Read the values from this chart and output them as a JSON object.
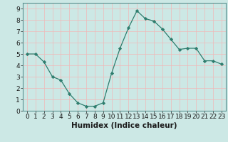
{
  "x": [
    0,
    1,
    2,
    3,
    4,
    5,
    6,
    7,
    8,
    9,
    10,
    11,
    12,
    13,
    14,
    15,
    16,
    17,
    18,
    19,
    20,
    21,
    22,
    23
  ],
  "y": [
    5.0,
    5.0,
    4.3,
    3.0,
    2.7,
    1.5,
    0.7,
    0.4,
    0.4,
    0.7,
    3.3,
    5.5,
    7.3,
    8.8,
    8.1,
    7.9,
    7.2,
    6.3,
    5.4,
    5.5,
    5.5,
    4.4,
    4.4,
    4.1
  ],
  "xlabel": "Humidex (Indice chaleur)",
  "xlim": [
    -0.5,
    23.5
  ],
  "ylim": [
    0,
    9.5
  ],
  "line_color": "#2e7d6e",
  "marker_color": "#2e7d6e",
  "bg_color": "#cce8e5",
  "grid_major_color": "#f0b8b8",
  "grid_minor_color": "#dde8e7",
  "font_color": "#1a1a1a",
  "xlabel_fontsize": 7.5,
  "tick_fontsize": 6.5,
  "ytick_vals": [
    0,
    1,
    2,
    3,
    4,
    5,
    6,
    7,
    8,
    9
  ]
}
